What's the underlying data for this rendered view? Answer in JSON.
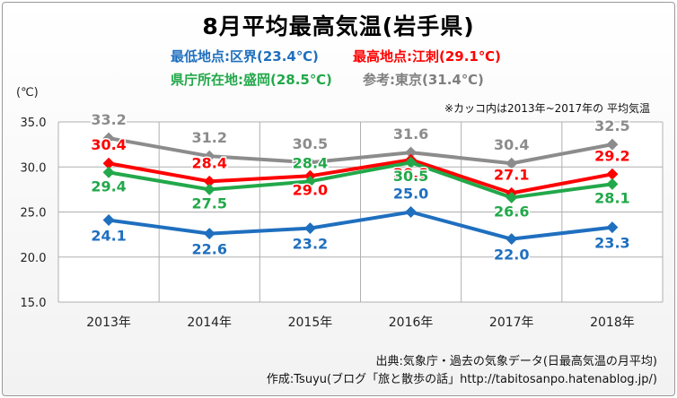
{
  "header": {
    "title": "8月平均最高気温(岩手県)",
    "line1_low": "最低地点:区界(23.4℃)",
    "line1_high": "最高地点:江刺(29.1℃)",
    "line2_pref": "県庁所在地:盛岡(28.5℃)",
    "line2_ref": "参考:東京(31.4℃)"
  },
  "unit_label": "(℃)",
  "note": "※カッコ内は2013年~2017年の 平均気温",
  "source": {
    "line1": "出典:気象庁・過去の気象データ(日最高気温の月平均)",
    "line2": "作成:Tsuyu(ブログ「旅と散歩の話」http://tabitosanpo.hatenablog.jp/)"
  },
  "colors": {
    "tokyo": "#8c8c8c",
    "esashi": "#ff0000",
    "morioka": "#22a84a",
    "kuzakai": "#1f6fbf"
  },
  "chart_data": {
    "type": "line",
    "title": "8月平均最高気温(岩手県)",
    "ylabel": "(℃)",
    "ylim": [
      15.0,
      35.0
    ],
    "yticks": [
      "15.0",
      "20.0",
      "25.0",
      "30.0",
      "35.0"
    ],
    "categories": [
      "2013年",
      "2014年",
      "2015年",
      "2016年",
      "2017年",
      "2018年"
    ],
    "grid": true,
    "series": [
      {
        "name": "東京",
        "color": "#8c8c8c",
        "values": [
          33.2,
          31.2,
          30.5,
          31.6,
          30.4,
          32.5
        ]
      },
      {
        "name": "江刺",
        "color": "#ff0000",
        "values": [
          30.4,
          28.4,
          29.0,
          30.8,
          27.1,
          29.2
        ]
      },
      {
        "name": "盛岡",
        "color": "#22a84a",
        "values": [
          29.4,
          27.5,
          28.4,
          30.5,
          26.6,
          28.1
        ]
      },
      {
        "name": "区界",
        "color": "#1f6fbf",
        "values": [
          24.1,
          22.6,
          23.2,
          25.0,
          22.0,
          23.3
        ]
      }
    ]
  }
}
